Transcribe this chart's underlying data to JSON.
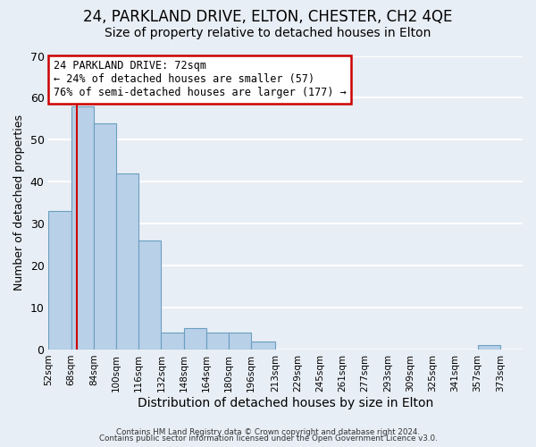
{
  "title1": "24, PARKLAND DRIVE, ELTON, CHESTER, CH2 4QE",
  "title2": "Size of property relative to detached houses in Elton",
  "xlabel": "Distribution of detached houses by size in Elton",
  "ylabel": "Number of detached properties",
  "bin_labels": [
    "52sqm",
    "68sqm",
    "84sqm",
    "100sqm",
    "116sqm",
    "132sqm",
    "148sqm",
    "164sqm",
    "180sqm",
    "196sqm",
    "213sqm",
    "229sqm",
    "245sqm",
    "261sqm",
    "277sqm",
    "293sqm",
    "309sqm",
    "325sqm",
    "341sqm",
    "357sqm",
    "373sqm"
  ],
  "bar_heights": [
    33,
    58,
    54,
    42,
    26,
    4,
    5,
    4,
    4,
    2,
    0,
    0,
    0,
    0,
    0,
    0,
    0,
    0,
    0,
    1,
    0
  ],
  "bar_color": "#b8d0e8",
  "bar_edge_color": "#6a9fc0",
  "bin_edges": [
    52,
    68,
    84,
    100,
    116,
    132,
    148,
    164,
    180,
    196,
    213,
    229,
    245,
    261,
    277,
    293,
    309,
    325,
    341,
    357,
    373,
    389
  ],
  "vline_x": 72,
  "vline_color": "#cc0000",
  "annotation_line1": "24 PARKLAND DRIVE: 72sqm",
  "annotation_line2": "← 24% of detached houses are smaller (57)",
  "annotation_line3": "76% of semi-detached houses are larger (177) →",
  "annotation_box_color": "#ffffff",
  "annotation_box_edge": "#cc0000",
  "ylim": [
    0,
    70
  ],
  "yticks": [
    0,
    10,
    20,
    30,
    40,
    50,
    60,
    70
  ],
  "footer1": "Contains HM Land Registry data © Crown copyright and database right 2024.",
  "footer2": "Contains public sector information licensed under the Open Government Licence v3.0.",
  "bg_color": "#e8eef5",
  "grid_color": "#ffffff",
  "title1_fontsize": 12,
  "title2_fontsize": 10
}
